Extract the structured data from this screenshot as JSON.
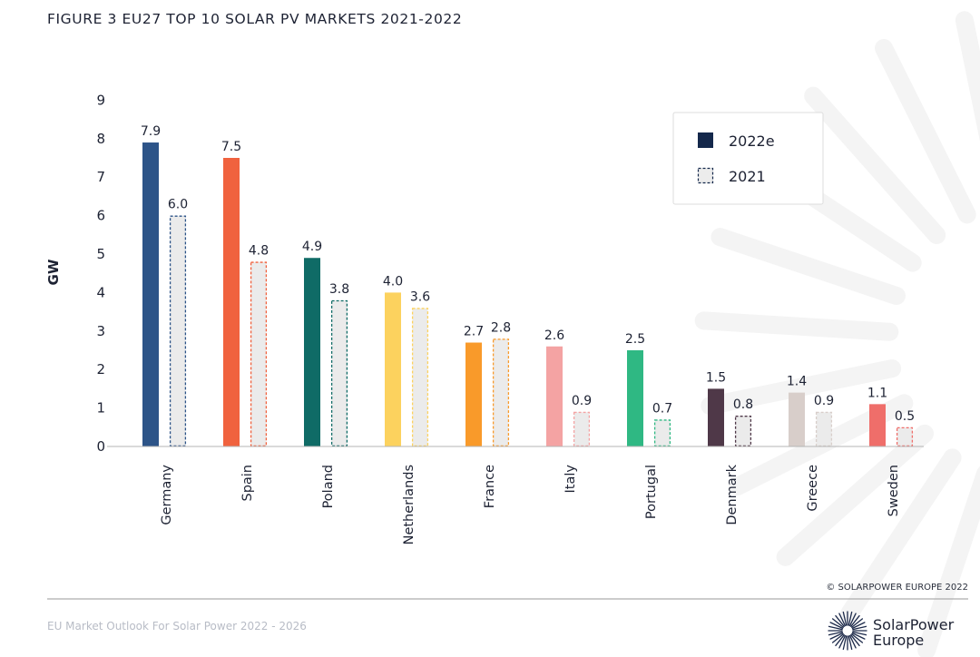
{
  "figure_title": "FIGURE 3 EU27 TOP 10 SOLAR PV MARKETS 2021-2022",
  "copyright": "© SOLARPOWER EUROPE 2022",
  "footer_text": "EU Market Outlook For Solar Power 2022 - 2026",
  "brand": {
    "line1": "SolarPower",
    "line2": "Europe"
  },
  "chart_data": {
    "type": "bar",
    "title": "FIGURE 3 EU27 TOP 10 SOLAR PV MARKETS 2021-2022",
    "xlabel": "",
    "ylabel": "GW",
    "ylim": [
      0,
      9
    ],
    "yticks": [
      0,
      1,
      2,
      3,
      4,
      5,
      6,
      7,
      8,
      9
    ],
    "categories": [
      "Germany",
      "Spain",
      "Poland",
      "Netherlands",
      "France",
      "Italy",
      "Portugal",
      "Denmark",
      "Greece",
      "Sweden"
    ],
    "colors": [
      "#2d5488",
      "#f0623e",
      "#0f6b66",
      "#fcd25e",
      "#f99a2a",
      "#f4a3a3",
      "#2fb883",
      "#4f3848",
      "#d8ceca",
      "#ef6e6a"
    ],
    "series": [
      {
        "name": "2022e",
        "style": "solid",
        "values": [
          7.9,
          7.5,
          4.9,
          4.0,
          2.7,
          2.6,
          2.5,
          1.5,
          1.4,
          1.1
        ],
        "labels": [
          "7.9",
          "7.5",
          "4.9",
          "4.0",
          "2.7",
          "2.6",
          "2.5",
          "1.5",
          "1.4",
          "1.1"
        ]
      },
      {
        "name": "2021",
        "style": "dashed",
        "values": [
          6.0,
          4.8,
          3.8,
          3.6,
          2.8,
          0.9,
          0.7,
          0.8,
          0.9,
          0.5
        ],
        "labels": [
          "6.0",
          "4.8",
          "3.8",
          "3.6",
          "2.8",
          "0.9",
          "0.7",
          "0.8",
          "0.9",
          "0.5"
        ]
      }
    ],
    "legend": {
      "position": "top-right",
      "items": [
        {
          "label": "2022e",
          "color": "#14284b",
          "style": "solid"
        },
        {
          "label": "2021",
          "color": "#14284b",
          "style": "dashed"
        }
      ]
    },
    "grid": false
  }
}
